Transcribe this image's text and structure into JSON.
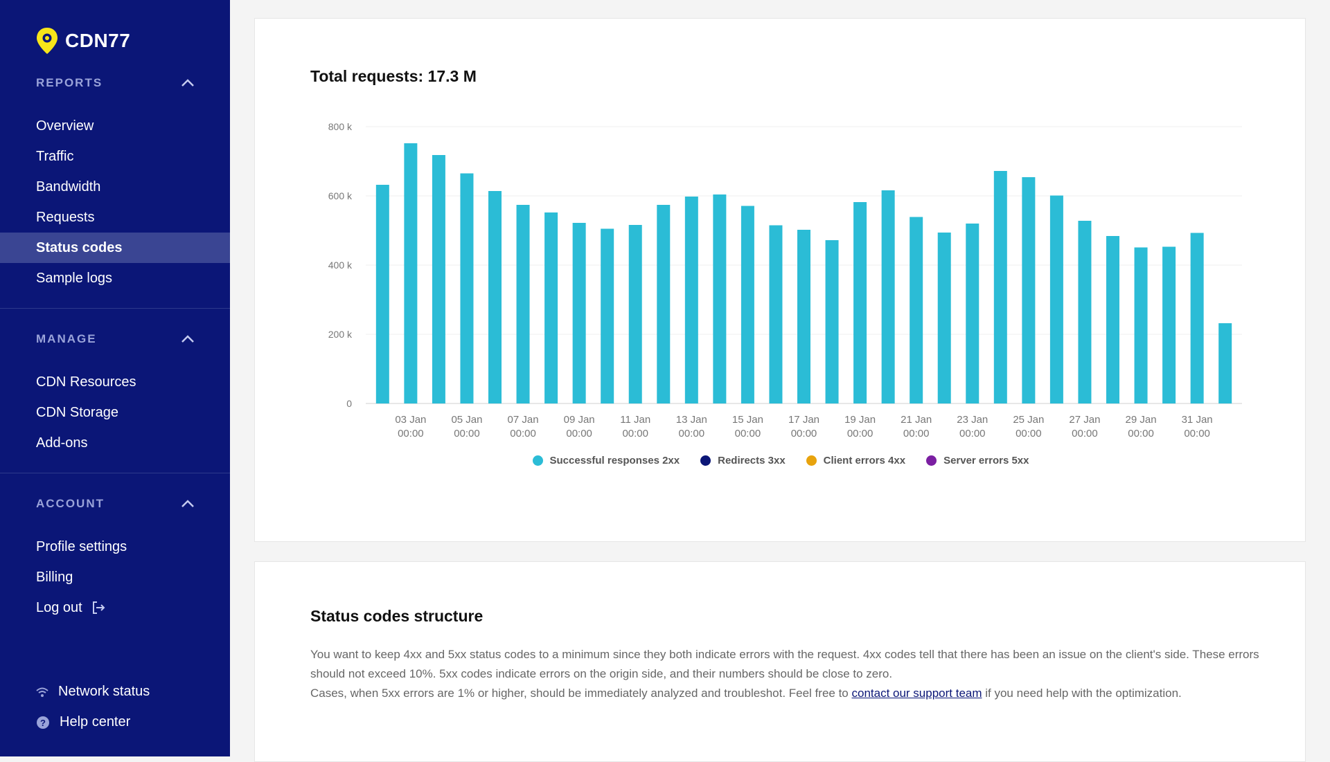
{
  "brand": {
    "name": "CDN77"
  },
  "sidebar": {
    "sections": [
      {
        "title": "REPORTS",
        "items": [
          "Overview",
          "Traffic",
          "Bandwidth",
          "Requests",
          "Status codes",
          "Sample logs"
        ]
      },
      {
        "title": "MANAGE",
        "items": [
          "CDN Resources",
          "CDN Storage",
          "Add-ons"
        ]
      },
      {
        "title": "ACCOUNT",
        "items": [
          "Profile settings",
          "Billing",
          "Log out"
        ]
      }
    ],
    "active_item": "Status codes",
    "bottom": {
      "network_status": "Network status",
      "help_center": "Help center"
    }
  },
  "colors": {
    "sidebar_bg": "#0b1677",
    "bar": "#2bbcd6",
    "redirects": "#0b1677",
    "client_errors": "#e8a30d",
    "server_errors": "#7b1fa2"
  },
  "chart_card": {
    "title": "Total requests: 17.3 M"
  },
  "chart_data": {
    "type": "bar",
    "ylim": [
      0,
      800000
    ],
    "yticks": [
      "0",
      "200 k",
      "400 k",
      "600 k",
      "800 k"
    ],
    "xtick_labels": [
      [
        "03 Jan",
        "00:00"
      ],
      [
        "05 Jan",
        "00:00"
      ],
      [
        "07 Jan",
        "00:00"
      ],
      [
        "09 Jan",
        "00:00"
      ],
      [
        "11 Jan",
        "00:00"
      ],
      [
        "13 Jan",
        "00:00"
      ],
      [
        "15 Jan",
        "00:00"
      ],
      [
        "17 Jan",
        "00:00"
      ],
      [
        "19 Jan",
        "00:00"
      ],
      [
        "21 Jan",
        "00:00"
      ],
      [
        "23 Jan",
        "00:00"
      ],
      [
        "25 Jan",
        "00:00"
      ],
      [
        "27 Jan",
        "00:00"
      ],
      [
        "29 Jan",
        "00:00"
      ],
      [
        "31 Jan",
        "00:00"
      ]
    ],
    "series": [
      {
        "name": "Successful responses 2xx",
        "values": [
          632000,
          752000,
          718000,
          665000,
          614000,
          574000,
          552000,
          522000,
          505000,
          516000,
          574000,
          598000,
          604000,
          571000,
          515000,
          502000,
          472000,
          582000,
          616000,
          539000,
          494000,
          520000,
          672000,
          654000,
          601000,
          528000,
          484000,
          451000,
          453000,
          493000,
          232000
        ]
      },
      {
        "name": "Redirects 3xx",
        "values": []
      },
      {
        "name": "Client errors 4xx",
        "values": []
      },
      {
        "name": "Server errors 5xx",
        "values": []
      }
    ]
  },
  "structure_card": {
    "title": "Status codes structure",
    "para1": "You want to keep 4xx and 5xx status codes to a minimum since they both indicate errors with the request. 4xx codes tell that there has been an issue on the client's side. These errors should not exceed 10%. 5xx codes indicate errors on the origin side, and their numbers should be close to zero.",
    "para2_before": "Cases, when 5xx errors are 1% or higher, should be immediately analyzed and troubleshot. Feel free to ",
    "para2_link": "contact our support team",
    "para2_after": " if you need help with the optimization."
  }
}
